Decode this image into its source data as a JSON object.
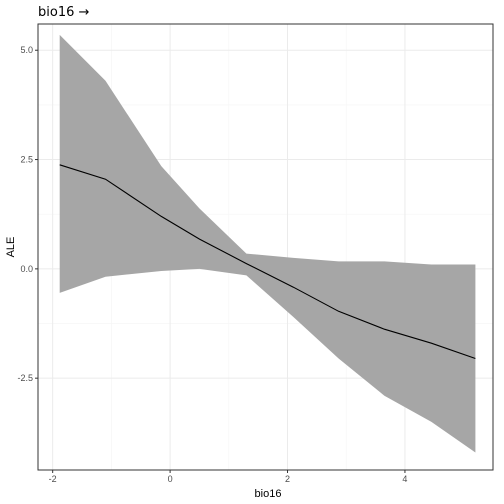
{
  "chart_data": {
    "type": "line",
    "title": "bio16 →",
    "xlabel": "bio16",
    "ylabel": "ALE",
    "xlim": [
      -2.25,
      5.5
    ],
    "ylim": [
      -4.6,
      5.6
    ],
    "x_ticks": [
      -2,
      0,
      2,
      4
    ],
    "x_tick_labels": [
      "-2",
      "0",
      "2",
      "4"
    ],
    "y_ticks": [
      -2.5,
      0.0,
      2.5,
      5.0
    ],
    "y_tick_labels": [
      "-2.5",
      "0.0",
      "2.5",
      "5.0"
    ],
    "grid": true,
    "colors": {
      "line": "#000000",
      "band": "#a6a6a6",
      "panel_border": "#333333",
      "grid_major": "#ebebeb",
      "grid_minor": "#f5f5f5"
    },
    "series": [
      {
        "x": [
          -1.88,
          -1.1,
          -0.15,
          0.5,
          1.3,
          2.1,
          2.87,
          3.65,
          4.45,
          5.2
        ],
        "y": [
          2.38,
          2.05,
          1.2,
          0.68,
          0.12,
          -0.42,
          -0.97,
          -1.38,
          -1.7,
          -2.05
        ],
        "upper": [
          5.35,
          4.3,
          2.35,
          1.38,
          0.35,
          0.25,
          0.17,
          0.17,
          0.1,
          0.1
        ],
        "lower": [
          -0.55,
          -0.18,
          -0.05,
          0.0,
          -0.15,
          -1.1,
          -2.05,
          -2.9,
          -3.5,
          -4.2
        ]
      }
    ]
  }
}
